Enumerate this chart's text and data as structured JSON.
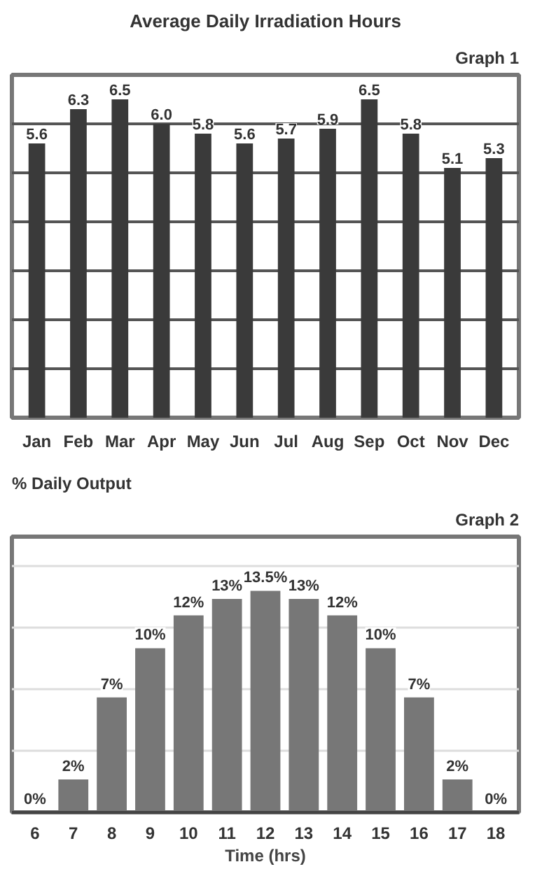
{
  "chart_data": [
    {
      "type": "bar",
      "title": "Average Daily Irradiation Hours",
      "annotations": [
        "Graph 1"
      ],
      "categories": [
        "Jan",
        "Feb",
        "Mar",
        "Apr",
        "May",
        "Jun",
        "Jul",
        "Aug",
        "Sep",
        "Oct",
        "Nov",
        "Dec"
      ],
      "values": [
        5.6,
        6.3,
        6.5,
        6.0,
        5.8,
        5.6,
        5.7,
        5.9,
        6.5,
        5.8,
        5.1,
        5.3
      ],
      "color": "#3a3a3a",
      "value_labels": [
        "5.6",
        "6.3",
        "6.5",
        "6.0",
        "5.8",
        "5.6",
        "5.7",
        "5.9",
        "6.5",
        "5.8",
        "5.1",
        "5.3"
      ],
      "ylim": [
        0,
        7
      ],
      "yticks": [
        {
          "value": 1,
          "label": null
        },
        {
          "value": 2,
          "label": null
        },
        {
          "value": 3,
          "label": null
        },
        {
          "value": 4,
          "label": null
        },
        {
          "value": 5,
          "label": null
        },
        {
          "value": 6,
          "label": null
        }
      ],
      "grid": "y",
      "tick_labels": "x"
    },
    {
      "type": "bar",
      "title": "% Daily Output",
      "annotations": [
        "Graph 2"
      ],
      "xlabel": "Time (hrs)",
      "categories": [
        "6",
        "7",
        "8",
        "9",
        "10",
        "11",
        "12",
        "13",
        "14",
        "15",
        "16",
        "17",
        "18"
      ],
      "values": [
        0,
        2,
        7,
        10,
        12,
        13,
        13.5,
        13,
        12,
        10,
        7,
        2,
        0
      ],
      "value_labels": [
        "0%",
        "2%",
        "7%",
        "10%",
        "12%",
        "13%",
        "13.5%",
        "13%",
        "12%",
        "10%",
        "7%",
        "2%",
        "0%"
      ],
      "color": "#777777",
      "ylim": [
        0,
        16.8
      ],
      "yticks": [
        {
          "value": 3.75,
          "label": null
        },
        {
          "value": 7.5,
          "label": null
        },
        {
          "value": 11.25,
          "label": null
        },
        {
          "value": 15,
          "label": null
        }
      ],
      "grid": "y",
      "tick_labels": "x"
    }
  ]
}
